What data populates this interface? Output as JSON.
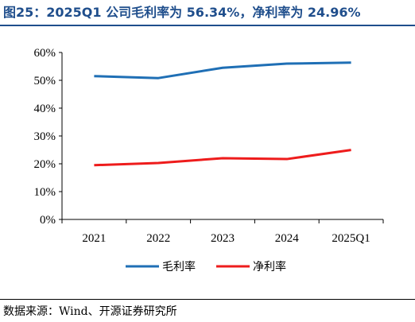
{
  "title": "图25：2025Q1 公司毛利率为 56.34%，净利率为 24.96%",
  "source": "数据来源：Wind、开源证券研究所",
  "colors": {
    "title": "#1f4e8c",
    "gross": "#1f6fb5",
    "net": "#ee1c1c"
  },
  "chart_data": {
    "type": "line",
    "categories": [
      "2021",
      "2022",
      "2023",
      "2024",
      "2025Q1"
    ],
    "series": [
      {
        "name": "毛利率",
        "color": "#1f6fb5",
        "values": [
          51.5,
          50.8,
          54.5,
          56.0,
          56.34
        ]
      },
      {
        "name": "净利率",
        "color": "#ee1c1c",
        "values": [
          19.5,
          20.3,
          22.0,
          21.7,
          24.96
        ]
      }
    ],
    "ylim": [
      0,
      60
    ],
    "yticks": [
      0,
      10,
      20,
      30,
      40,
      50,
      60
    ],
    "ytick_labels": [
      "0%",
      "10%",
      "20%",
      "30%",
      "40%",
      "50%",
      "60%"
    ],
    "grid": false,
    "legend": "bottom"
  }
}
